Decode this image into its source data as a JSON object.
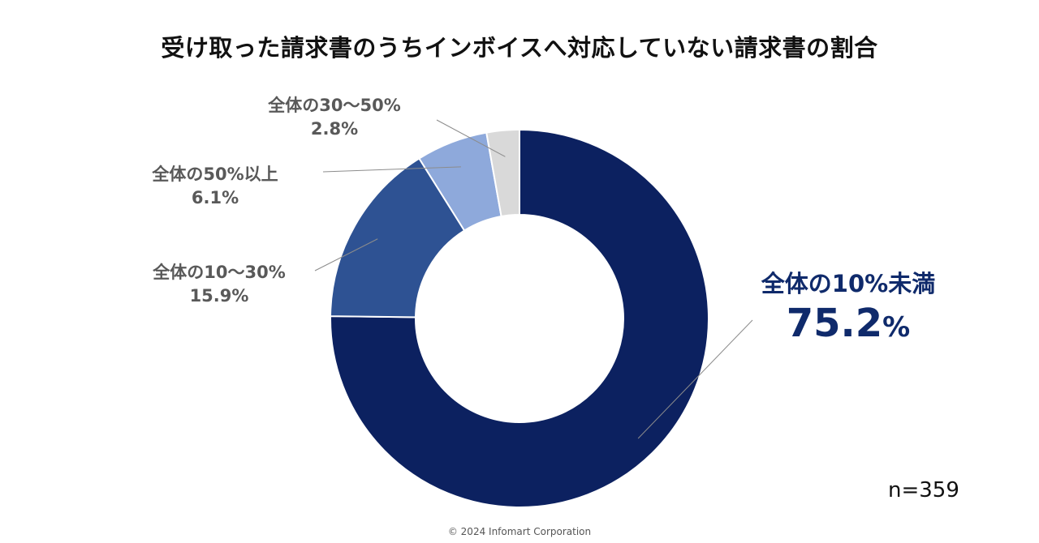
{
  "chart_data": {
    "type": "pie",
    "donut": true,
    "title": "受け取った請求書のうちインボイスへ対応していない請求書の割合",
    "categories": [
      "全体の10%未満",
      "全体の10～30%",
      "全体の50%以上",
      "全体の30～50%"
    ],
    "values": [
      75.2,
      15.9,
      6.1,
      2.8
    ],
    "value_labels": [
      "75.2%",
      "15.9%",
      "6.1%",
      "2.8%"
    ],
    "colors": [
      "#0c2160",
      "#2e5293",
      "#8ea9db",
      "#d9d9d9"
    ],
    "sample_size": "n=359"
  },
  "footer": "© 2024  Infomart Corporation"
}
